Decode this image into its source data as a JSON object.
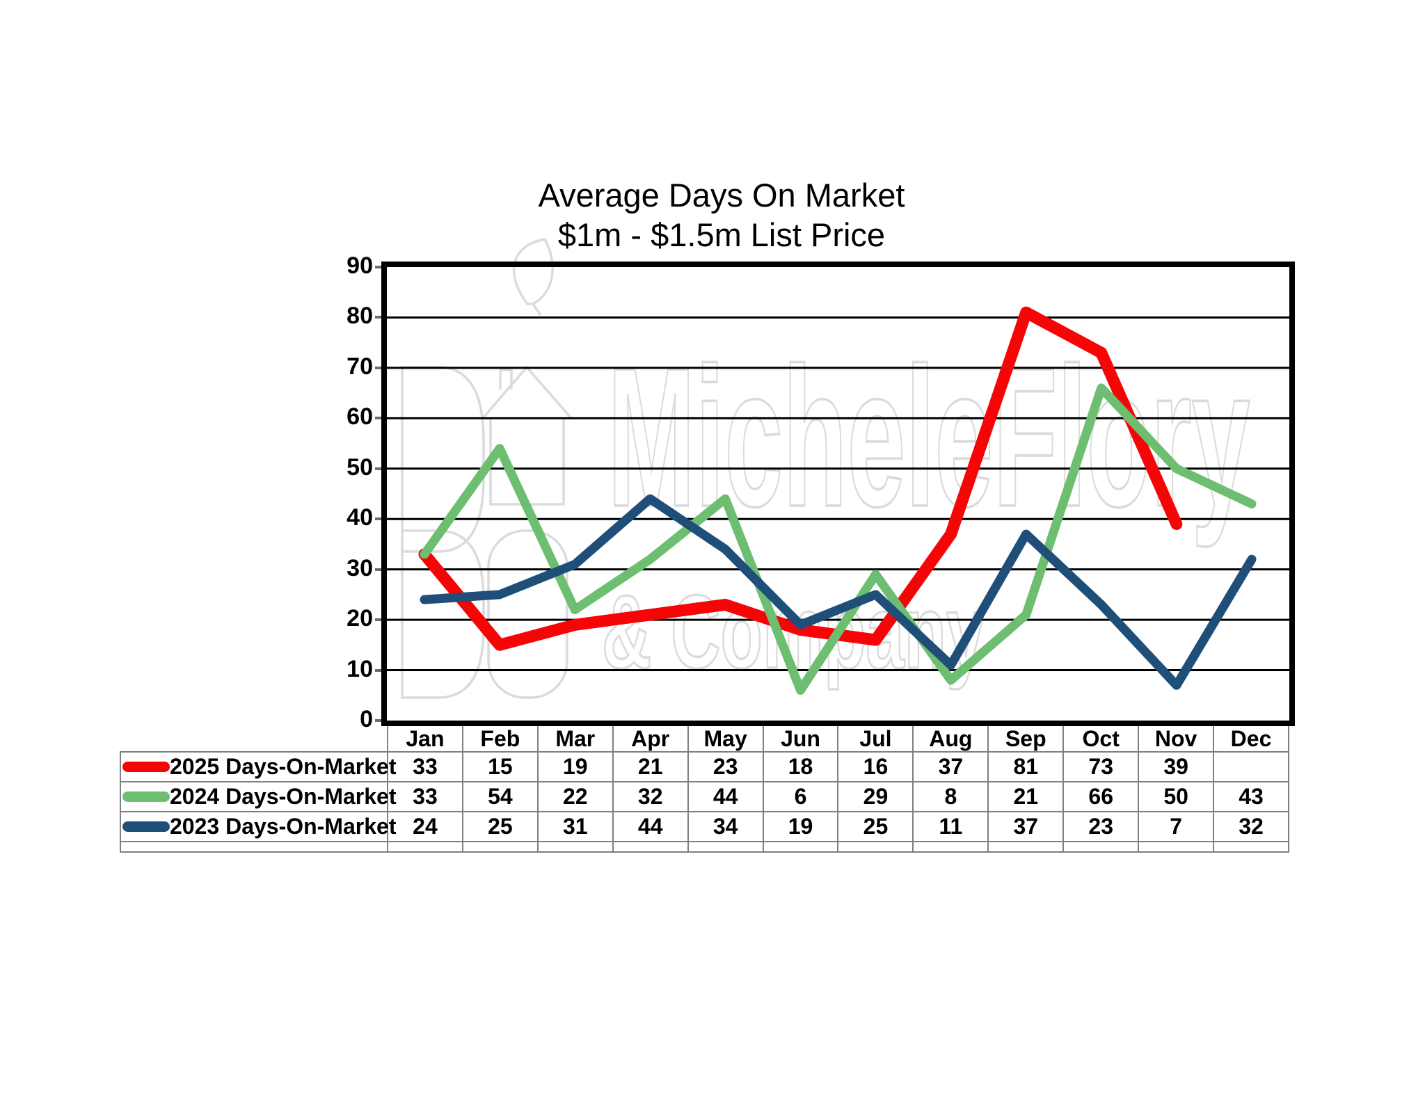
{
  "title": {
    "line1": "Average Days On Market",
    "line2": "$1m - $1.5m List Price"
  },
  "watermark": {
    "line1": "MicheleFlory",
    "line2": "& Company"
  },
  "chart_data": {
    "type": "line",
    "title": "Average Days On Market $1m - $1.5m List Price",
    "categories": [
      "Jan",
      "Feb",
      "Mar",
      "Apr",
      "May",
      "Jun",
      "Jul",
      "Aug",
      "Sep",
      "Oct",
      "Nov",
      "Dec"
    ],
    "ylim": [
      0,
      90
    ],
    "yticks": [
      0,
      10,
      20,
      30,
      40,
      50,
      60,
      70,
      80,
      90
    ],
    "grid": "horizontal",
    "legend_position": "table-left",
    "series": [
      {
        "name": "2025 Days-On-Market",
        "color": "#f50505",
        "stroke_width": 17,
        "values": [
          33,
          15,
          19,
          21,
          23,
          18,
          16,
          37,
          81,
          73,
          39,
          null
        ]
      },
      {
        "name": "2024 Days-On-Market",
        "color": "#6dbe71",
        "stroke_width": 13,
        "values": [
          33,
          54,
          22,
          32,
          44,
          6,
          29,
          8,
          21,
          66,
          50,
          43
        ]
      },
      {
        "name": "2023 Days-On-Market",
        "color": "#1f4e79",
        "stroke_width": 13,
        "values": [
          24,
          25,
          31,
          44,
          34,
          19,
          25,
          11,
          37,
          23,
          7,
          32
        ]
      }
    ]
  },
  "colors": {
    "gridline": "#000000",
    "plot_border": "#000000",
    "table_border": "#7f7f7f",
    "watermark": "#dbdbdb",
    "text": "#000000"
  }
}
